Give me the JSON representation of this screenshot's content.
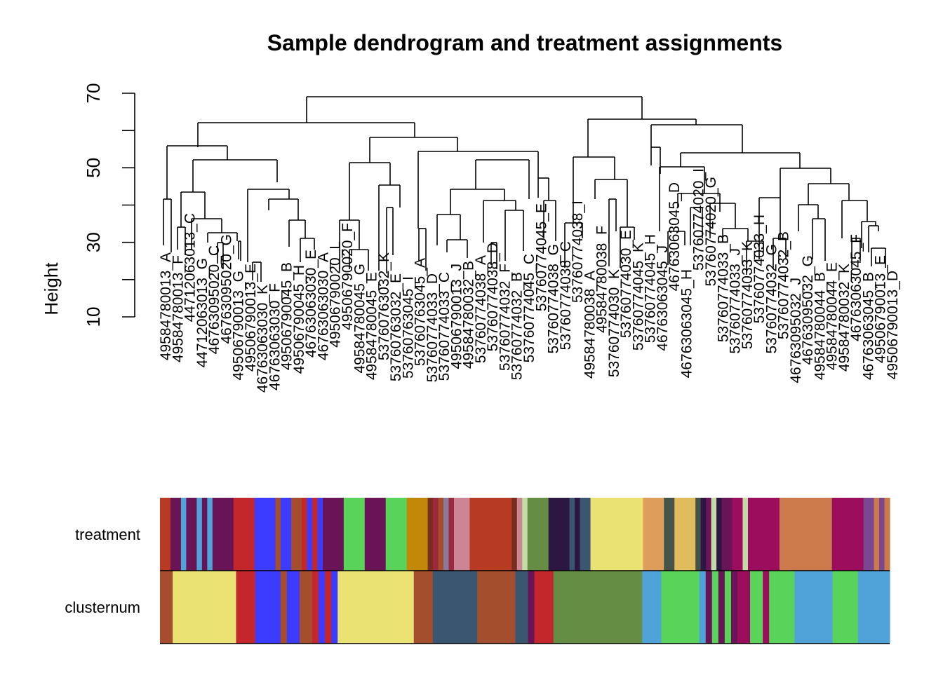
{
  "chart_data": {
    "type": "dendrogram",
    "title": "Sample dendrogram and treatment assignments",
    "ylabel": "Height",
    "ylim": [
      10,
      70
    ],
    "yticks": [
      10,
      30,
      50,
      70
    ],
    "leaves": [
      "49584780013_A",
      "49584780013_F",
      "44712063013_C",
      "44712063013_G",
      "46763095020_C",
      "46763095020_G",
      "49506790013_G",
      "49506790013_E",
      "46763063030_K",
      "46763063030_F",
      "49506790045_B",
      "49506790045_H",
      "46763063030_E",
      "46763063030_A",
      "49506790020_L",
      "49506790020_F",
      "49584780045_G",
      "49584780045_E",
      "53760763032_K",
      "53760763032_E",
      "53760763045_I",
      "53760763045_A",
      "53760774033_D",
      "53760774033_C",
      "49506790013_J",
      "49584780032_B",
      "53760774038_A",
      "53760774038_D",
      "53760774032_F",
      "53760774032_B",
      "53760774045_C",
      "53760774045_E",
      "53760774038_G",
      "53760774038_C",
      "53760774038_I",
      "49584780038_A",
      "49584780038_F",
      "53760774030_K",
      "53760774030_E",
      "53760774045_K",
      "53760774045_H",
      "46763063045_J",
      "46763063045_D",
      "46763063045_H",
      "53760774020_I",
      "53760774020_G",
      "53760774033_B",
      "53760774033_J",
      "53760774033_K",
      "53760774033_H",
      "53760774032_G",
      "53760774032_B",
      "46763095032_J",
      "46763095032_G",
      "49584780044_B",
      "49584780044_E",
      "49584780032_K",
      "46763063045_F",
      "46763063045_B",
      "49506790013_E",
      "49506790013_D"
    ],
    "rows": [
      {
        "label": "treatment",
        "segments": [
          [
            "#B73A23",
            1
          ],
          [
            "#6A1458",
            1
          ],
          [
            "#4FA3D9",
            0.5
          ],
          [
            "#6A1458",
            1
          ],
          [
            "#4FA3D9",
            0.5
          ],
          [
            "#6A1458",
            0.5
          ],
          [
            "#4FA3D9",
            0.5
          ],
          [
            "#6A1458",
            2
          ],
          [
            "#C3272B",
            2
          ],
          [
            "#3C3CFF",
            2
          ],
          [
            "#A44E2E",
            0.5
          ],
          [
            "#3C3CFF",
            1
          ],
          [
            "#A44E2E",
            1
          ],
          [
            "#C3272B",
            0.5
          ],
          [
            "#3C3CFF",
            0.5
          ],
          [
            "#C3272B",
            0.5
          ],
          [
            "#3C3CFF",
            0.5
          ],
          [
            "#6A1458",
            2
          ],
          [
            "#5AD35A",
            2
          ],
          [
            "#6A1458",
            2
          ],
          [
            "#5AD35A",
            2
          ],
          [
            "#C2880A",
            2
          ],
          [
            "#7A2E20",
            0.5
          ],
          [
            "#9B2A3E",
            0.5
          ],
          [
            "#A44E2E",
            0.5
          ],
          [
            "#8A7A9A",
            0.5
          ],
          [
            "#9B2A3E",
            0.5
          ],
          [
            "#CB8595",
            1.5
          ],
          [
            "#B73A23",
            4
          ],
          [
            "#7A2E20",
            0.5
          ],
          [
            "#CB8595",
            0.5
          ],
          [
            "#C3DBA6",
            0.5
          ],
          [
            "#658E44",
            2
          ],
          [
            "#2C1642",
            2
          ],
          [
            "#3B5670",
            0.5
          ],
          [
            "#2C1642",
            0.5
          ],
          [
            "#3B5670",
            1
          ],
          [
            "#EBE274",
            5
          ],
          [
            "#DD9E5C",
            2
          ],
          [
            "#465349",
            1
          ],
          [
            "#E0BC5C",
            2
          ],
          [
            "#465349",
            0.5
          ],
          [
            "#2C1642",
            0.5
          ],
          [
            "#6A1458",
            0.5
          ],
          [
            "#C3DBA6",
            0.5
          ],
          [
            "#2C1642",
            0.5
          ],
          [
            "#6A1458",
            1
          ],
          [
            "#9C0D5E",
            1
          ],
          [
            "#C3DBA6",
            0.5
          ],
          [
            "#9C0D5E",
            3
          ],
          [
            "#CC7A4B",
            5
          ],
          [
            "#9C0D5E",
            3
          ],
          [
            "#7A4890",
            1
          ],
          [
            "#CC7A4B",
            0.5
          ],
          [
            "#7A4890",
            0.5
          ],
          [
            "#CC7A4B",
            0.5
          ]
        ]
      },
      {
        "label": "clusternum",
        "segments": [
          [
            "#A44E2E",
            1
          ],
          [
            "#EBE274",
            5
          ],
          [
            "#C3272B",
            1.5
          ],
          [
            "#3C3CFF",
            2
          ],
          [
            "#A44E2E",
            0.5
          ],
          [
            "#3C3CFF",
            1
          ],
          [
            "#A44E2E",
            1
          ],
          [
            "#C3272B",
            0.5
          ],
          [
            "#3C3CFF",
            0.5
          ],
          [
            "#C3272B",
            0.5
          ],
          [
            "#3C3CFF",
            0.5
          ],
          [
            "#EBE274",
            6
          ],
          [
            "#A44E2E",
            1.5
          ],
          [
            "#3B5670",
            3.5
          ],
          [
            "#A44E2E",
            3
          ],
          [
            "#3B5670",
            1
          ],
          [
            "#6A1458",
            0.5
          ],
          [
            "#C3272B",
            1.5
          ],
          [
            "#658E44",
            7
          ],
          [
            "#4FA3D9",
            1.5
          ],
          [
            "#5AD35A",
            3
          ],
          [
            "#4FA3D9",
            0.5
          ],
          [
            "#6A1458",
            0.5
          ],
          [
            "#5AD35A",
            0.5
          ],
          [
            "#6A1458",
            0.5
          ],
          [
            "#5AD35A",
            0.5
          ],
          [
            "#6A1458",
            0.5
          ],
          [
            "#9C0D5E",
            1
          ],
          [
            "#5AD35A",
            1
          ],
          [
            "#9C0D5E",
            0.5
          ],
          [
            "#5AD35A",
            2
          ],
          [
            "#4FA3D9",
            3
          ],
          [
            "#5AD35A",
            2
          ],
          [
            "#4FA3D9",
            2.5
          ]
        ]
      }
    ]
  }
}
